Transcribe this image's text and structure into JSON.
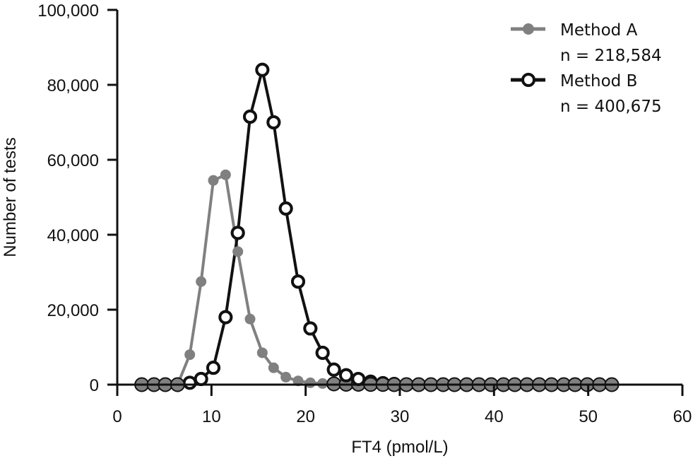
{
  "chart_data": {
    "type": "line",
    "title": "",
    "xlabel": "FT4 (pmol/L)",
    "ylabel": "Number of tests",
    "xlim": [
      0,
      60
    ],
    "ylim": [
      0,
      100000
    ],
    "x_ticks": [
      0,
      10,
      20,
      30,
      40,
      50,
      60
    ],
    "x_tick_labels": [
      "0",
      "10",
      "20",
      "30",
      "40",
      "50",
      "60"
    ],
    "y_ticks": [
      0,
      20000,
      40000,
      60000,
      80000,
      100000
    ],
    "y_tick_labels": [
      "0",
      "20,000",
      "40,000",
      "60,000",
      "80,000",
      "100,000"
    ],
    "grid": false,
    "legend_position": "top-right",
    "series": [
      {
        "name": "Method A",
        "n_label": "n = 218,584",
        "color": "#808080",
        "marker": "filled-circle",
        "x": [
          2.6,
          3.9,
          5.1,
          6.4,
          7.7,
          8.9,
          10.2,
          11.5,
          12.8,
          14.1,
          15.4,
          16.6,
          17.9,
          19.2,
          20.5,
          21.8,
          23.0,
          24.3,
          25.6,
          26.9,
          28.2,
          29.4,
          30.7,
          32.0,
          33.3,
          34.6,
          35.8,
          37.1,
          38.4,
          39.7,
          41.0,
          42.2,
          43.5,
          44.8,
          46.1,
          47.4,
          48.6,
          49.9,
          51.2,
          52.5
        ],
        "values": [
          0,
          0,
          0,
          0,
          8000,
          27500,
          54500,
          56000,
          35500,
          17500,
          8500,
          4500,
          2000,
          1000,
          500,
          300,
          200,
          100,
          100,
          50,
          50,
          0,
          0,
          0,
          0,
          0,
          0,
          0,
          0,
          0,
          0,
          0,
          0,
          0,
          0,
          0,
          0,
          0,
          0,
          0
        ]
      },
      {
        "name": "Method B",
        "n_label": "n = 400,675",
        "color": "#111111",
        "marker": "open-circle",
        "x": [
          7.7,
          8.9,
          10.2,
          11.5,
          12.8,
          14.1,
          15.4,
          16.6,
          17.9,
          19.2,
          20.5,
          21.8,
          23.0,
          24.3,
          25.6,
          26.9,
          28.2,
          29.4
        ],
        "values": [
          500,
          1500,
          4500,
          18000,
          40500,
          71500,
          84000,
          70000,
          47000,
          27500,
          15000,
          8500,
          4000,
          2500,
          1500,
          800,
          400,
          200
        ]
      }
    ]
  },
  "legend": {
    "items": [
      {
        "label": "Method A",
        "sublabel": "n = 218,584"
      },
      {
        "label": "Method B",
        "sublabel": "n = 400,675"
      }
    ]
  }
}
